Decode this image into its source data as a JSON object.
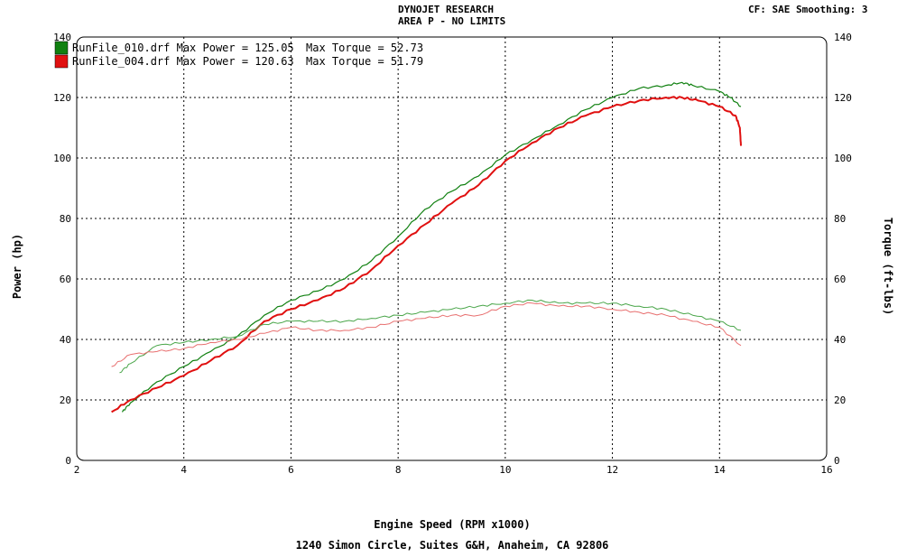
{
  "header": {
    "title": "DYNOJET RESEARCH",
    "subtitle": "AREA P - NO LIMITS",
    "settings": "CF: SAE  Smoothing: 3"
  },
  "footer": {
    "address": "1240 Simon Circle,  Suites G&H,  Anaheim, CA  92806"
  },
  "chart_data": {
    "type": "line",
    "title": "DYNOJET RESEARCH",
    "subtitle": "AREA P - NO LIMITS",
    "xlabel": "Engine Speed (RPM x1000)",
    "ylabel": "Power (hp)",
    "y2label": "Torque (ft-lbs)",
    "xlim": [
      2,
      16
    ],
    "ylim": [
      0,
      140
    ],
    "y2lim": [
      0,
      140
    ],
    "xticks": [
      "2",
      "4",
      "6",
      "8",
      "10",
      "12",
      "14",
      "16"
    ],
    "yticks": [
      "0",
      "20",
      "40",
      "60",
      "80",
      "100",
      "120",
      "140"
    ],
    "grid": true,
    "legend_position": "top-left",
    "legend": [
      {
        "name": "RunFile_010.drf",
        "power_text": "Max Power = 125.05",
        "torque_text": "Max Torque = 52.73",
        "color": "#108010"
      },
      {
        "name": "RunFile_004.drf",
        "power_text": "Max Power = 120.63",
        "torque_text": "Max Torque = 51.79",
        "color": "#e01010"
      }
    ],
    "series": [
      {
        "name": "RunFile_010.drf",
        "measure": "power",
        "color": "#108010",
        "x": [
          2.85,
          3.0,
          3.5,
          4.0,
          4.5,
          5.0,
          5.5,
          6.0,
          6.5,
          7.0,
          7.5,
          8.0,
          8.5,
          9.0,
          9.5,
          10.0,
          10.5,
          11.0,
          11.5,
          12.0,
          12.5,
          13.0,
          13.3,
          13.5,
          14.0,
          14.2,
          14.4
        ],
        "values": [
          16,
          19,
          26,
          31,
          36,
          41,
          48,
          53,
          56,
          60,
          66,
          74,
          83,
          89,
          94,
          101,
          106,
          111,
          116,
          120,
          123,
          124,
          125,
          124,
          122,
          120,
          117
        ]
      },
      {
        "name": "RunFile_004.drf",
        "measure": "power",
        "color": "#e01010",
        "x": [
          2.65,
          3.0,
          3.5,
          4.0,
          4.5,
          5.0,
          5.5,
          6.0,
          6.5,
          7.0,
          7.5,
          8.0,
          8.5,
          9.0,
          9.5,
          10.0,
          10.5,
          11.0,
          11.5,
          12.0,
          12.5,
          13.0,
          13.3,
          13.6,
          14.0,
          14.3,
          14.38,
          14.4
        ],
        "values": [
          16,
          20,
          24,
          28,
          33,
          38,
          46,
          50,
          53,
          57,
          63,
          71,
          78,
          85,
          91,
          99,
          105,
          110,
          114,
          117,
          119,
          120,
          120,
          119,
          117,
          114,
          110,
          104
        ]
      },
      {
        "name": "RunFile_010.drf",
        "measure": "torque",
        "color": "#108010",
        "x": [
          2.8,
          3.0,
          3.5,
          4.0,
          4.5,
          5.0,
          5.5,
          6.0,
          6.5,
          7.0,
          7.5,
          8.0,
          8.5,
          9.0,
          9.5,
          10.0,
          10.5,
          11.0,
          11.5,
          12.0,
          12.5,
          13.0,
          13.5,
          14.0,
          14.4
        ],
        "values": [
          29,
          32,
          38,
          39,
          40,
          41,
          45,
          46,
          46,
          46,
          47,
          48,
          49,
          50,
          51,
          52,
          53,
          52,
          52,
          52,
          51,
          50,
          48,
          46,
          43
        ]
      },
      {
        "name": "RunFile_004.drf",
        "measure": "torque",
        "color": "#e01010",
        "x": [
          2.65,
          3.0,
          3.5,
          4.0,
          4.5,
          5.0,
          5.5,
          6.0,
          6.5,
          7.0,
          7.5,
          8.0,
          8.5,
          9.0,
          9.5,
          10.0,
          10.5,
          11.0,
          11.5,
          12.0,
          12.5,
          13.0,
          13.5,
          14.0,
          14.4
        ],
        "values": [
          31,
          35,
          36,
          37,
          39,
          40,
          42,
          44,
          43,
          43,
          44,
          46,
          47,
          48,
          48,
          51,
          52,
          51,
          51,
          50,
          49,
          48,
          46,
          44,
          38
        ]
      }
    ]
  }
}
